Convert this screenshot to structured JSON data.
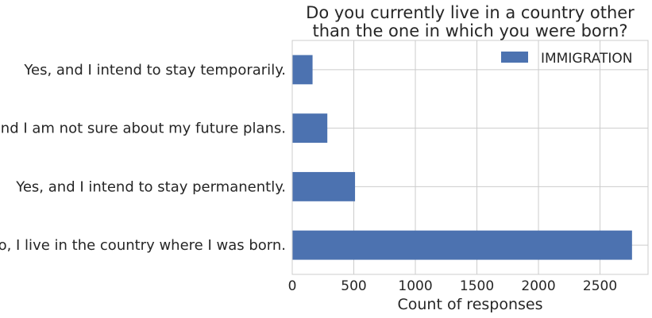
{
  "chart_data": {
    "type": "bar",
    "orientation": "horizontal",
    "title_lines": [
      "Do you currently live in a country other",
      "than the one in which you were born?"
    ],
    "xlabel": "Count of responses",
    "ylabel": "",
    "categories": [
      "No, I live in the country where I was born.",
      "Yes, and I intend to stay permanently.",
      "Yes, and I am not sure about my future plans.",
      "Yes, and I intend to stay temporarily."
    ],
    "series": [
      {
        "name": "IMMIGRATION",
        "values": [
          2760,
          510,
          285,
          165
        ]
      }
    ],
    "xlim": [
      0,
      2890
    ],
    "xticks": [
      0,
      500,
      1000,
      1500,
      2000,
      2500
    ],
    "grid": true,
    "legend": "top-right",
    "bar_color": "#4c72b0"
  }
}
